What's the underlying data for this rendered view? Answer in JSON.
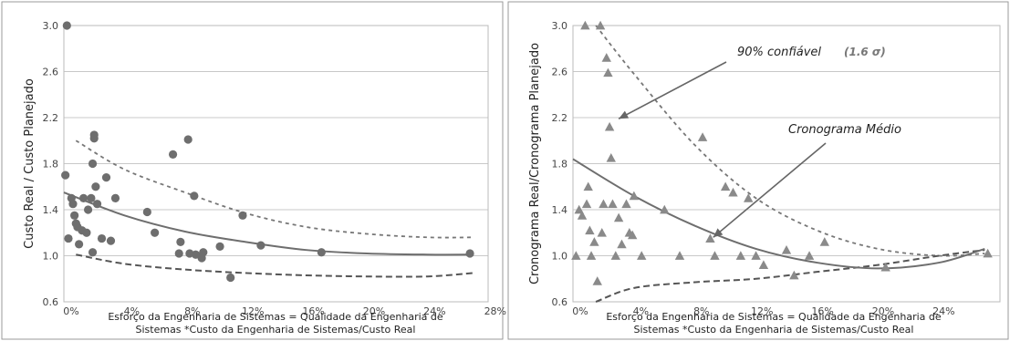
{
  "chart_data": [
    {
      "type": "scatter",
      "ylabel": "Custo Real / Custo Planejado",
      "xlabel_lines": [
        "Esforço da Engenharia de Sistemas = Qualidade da Engenharia de",
        "Sistemas *Custo da Engenharia de Sistemas/Custo Real"
      ],
      "xlim": [
        0,
        28
      ],
      "ylim": [
        0.6,
        3.0
      ],
      "x_ticks": [
        "0%",
        "4%",
        "8%",
        "12%",
        "16%",
        "20%",
        "24%",
        "28%"
      ],
      "y_ticks": [
        "0.6",
        "1.0",
        "1.4",
        "1.8",
        "2.2",
        "2.6",
        "3.0"
      ],
      "grid": true,
      "marker": "circle",
      "points": [
        {
          "x": 0.2,
          "y": 3.0
        },
        {
          "x": 0.1,
          "y": 1.7
        },
        {
          "x": 0.3,
          "y": 1.15
        },
        {
          "x": 0.5,
          "y": 1.5
        },
        {
          "x": 0.6,
          "y": 1.45
        },
        {
          "x": 0.7,
          "y": 1.35
        },
        {
          "x": 0.8,
          "y": 1.28
        },
        {
          "x": 0.9,
          "y": 1.25
        },
        {
          "x": 1.0,
          "y": 1.1
        },
        {
          "x": 1.2,
          "y": 1.22
        },
        {
          "x": 1.3,
          "y": 1.5
        },
        {
          "x": 1.5,
          "y": 1.2
        },
        {
          "x": 1.6,
          "y": 1.4
        },
        {
          "x": 1.8,
          "y": 1.5
        },
        {
          "x": 1.9,
          "y": 1.8
        },
        {
          "x": 2.0,
          "y": 2.05
        },
        {
          "x": 2.0,
          "y": 2.02
        },
        {
          "x": 2.1,
          "y": 1.6
        },
        {
          "x": 2.2,
          "y": 1.45
        },
        {
          "x": 1.9,
          "y": 1.03
        },
        {
          "x": 2.5,
          "y": 1.15
        },
        {
          "x": 2.8,
          "y": 1.68
        },
        {
          "x": 3.1,
          "y": 1.13
        },
        {
          "x": 3.4,
          "y": 1.5
        },
        {
          "x": 5.5,
          "y": 1.38
        },
        {
          "x": 6.0,
          "y": 1.2
        },
        {
          "x": 7.2,
          "y": 1.88
        },
        {
          "x": 7.6,
          "y": 1.02
        },
        {
          "x": 7.7,
          "y": 1.12
        },
        {
          "x": 8.2,
          "y": 2.01
        },
        {
          "x": 8.3,
          "y": 1.02
        },
        {
          "x": 8.6,
          "y": 1.52
        },
        {
          "x": 8.7,
          "y": 1.01
        },
        {
          "x": 9.1,
          "y": 0.98
        },
        {
          "x": 9.2,
          "y": 1.03
        },
        {
          "x": 10.3,
          "y": 1.08
        },
        {
          "x": 11.0,
          "y": 0.81
        },
        {
          "x": 11.8,
          "y": 1.35
        },
        {
          "x": 13.0,
          "y": 1.09
        },
        {
          "x": 17.0,
          "y": 1.03
        },
        {
          "x": 26.8,
          "y": 1.02
        }
      ],
      "curves": {
        "mean": [
          {
            "x": 0,
            "y": 1.55
          },
          {
            "x": 4,
            "y": 1.35
          },
          {
            "x": 8,
            "y": 1.21
          },
          {
            "x": 12,
            "y": 1.12
          },
          {
            "x": 16,
            "y": 1.05
          },
          {
            "x": 20,
            "y": 1.02
          },
          {
            "x": 24,
            "y": 1.01
          },
          {
            "x": 27,
            "y": 1.01
          }
        ],
        "upper": [
          {
            "x": 0.8,
            "y": 2.0
          },
          {
            "x": 4,
            "y": 1.75
          },
          {
            "x": 8,
            "y": 1.55
          },
          {
            "x": 12,
            "y": 1.37
          },
          {
            "x": 16,
            "y": 1.25
          },
          {
            "x": 20,
            "y": 1.19
          },
          {
            "x": 24,
            "y": 1.16
          },
          {
            "x": 27,
            "y": 1.16
          }
        ],
        "lower": [
          {
            "x": 0.8,
            "y": 1.01
          },
          {
            "x": 4,
            "y": 0.93
          },
          {
            "x": 8,
            "y": 0.88
          },
          {
            "x": 12,
            "y": 0.85
          },
          {
            "x": 16,
            "y": 0.83
          },
          {
            "x": 20,
            "y": 0.82
          },
          {
            "x": 24,
            "y": 0.82
          },
          {
            "x": 27,
            "y": 0.85
          }
        ]
      }
    },
    {
      "type": "scatter",
      "ylabel": "Cronograma Real/Cronograma Planejado",
      "xlabel_lines": [
        "Esforço da Engenharia de Sistemas = Qualidade da Engenharia de",
        "Sistemas *Custo da Engenharia de Sistemas/Custo Real"
      ],
      "xlim": [
        0,
        28
      ],
      "ylim": [
        0.6,
        3.0
      ],
      "x_ticks": [
        "0%",
        "4%",
        "8%",
        "12%",
        "16%",
        "20%",
        "24%"
      ],
      "y_ticks": [
        "0.6",
        "1.0",
        "1.4",
        "1.8",
        "2.2",
        "2.6",
        "3.0"
      ],
      "grid": true,
      "marker": "triangle",
      "annotations": [
        {
          "text": "90% confiável",
          "sub": "(1.6 σ)",
          "target_x": 3.0,
          "target_y": 2.19
        },
        {
          "text": "Cronograma Médio",
          "target_x": 9.2,
          "target_y": 1.16
        }
      ],
      "points": [
        {
          "x": 0.2,
          "y": 1.0
        },
        {
          "x": 0.4,
          "y": 1.4
        },
        {
          "x": 0.6,
          "y": 1.35
        },
        {
          "x": 0.8,
          "y": 3.0
        },
        {
          "x": 0.9,
          "y": 1.45
        },
        {
          "x": 1.0,
          "y": 1.6
        },
        {
          "x": 1.1,
          "y": 1.22
        },
        {
          "x": 1.2,
          "y": 1.0
        },
        {
          "x": 1.4,
          "y": 1.12
        },
        {
          "x": 1.6,
          "y": 0.78
        },
        {
          "x": 1.8,
          "y": 3.0
        },
        {
          "x": 1.9,
          "y": 1.2
        },
        {
          "x": 2.0,
          "y": 1.45
        },
        {
          "x": 2.2,
          "y": 2.72
        },
        {
          "x": 2.3,
          "y": 2.59
        },
        {
          "x": 2.4,
          "y": 2.12
        },
        {
          "x": 2.5,
          "y": 1.85
        },
        {
          "x": 2.6,
          "y": 1.45
        },
        {
          "x": 2.8,
          "y": 1.0
        },
        {
          "x": 3.0,
          "y": 1.33
        },
        {
          "x": 3.2,
          "y": 1.1
        },
        {
          "x": 3.5,
          "y": 1.45
        },
        {
          "x": 3.7,
          "y": 1.2
        },
        {
          "x": 3.9,
          "y": 1.18
        },
        {
          "x": 4.0,
          "y": 1.52
        },
        {
          "x": 4.5,
          "y": 1.0
        },
        {
          "x": 6.0,
          "y": 1.4
        },
        {
          "x": 7.0,
          "y": 1.0
        },
        {
          "x": 8.5,
          "y": 2.03
        },
        {
          "x": 9.0,
          "y": 1.15
        },
        {
          "x": 9.3,
          "y": 1.0
        },
        {
          "x": 10.0,
          "y": 1.6
        },
        {
          "x": 10.5,
          "y": 1.55
        },
        {
          "x": 11.0,
          "y": 1.0
        },
        {
          "x": 11.5,
          "y": 1.5
        },
        {
          "x": 12.0,
          "y": 1.0
        },
        {
          "x": 12.5,
          "y": 0.92
        },
        {
          "x": 14.0,
          "y": 1.05
        },
        {
          "x": 14.5,
          "y": 0.83
        },
        {
          "x": 15.5,
          "y": 1.0
        },
        {
          "x": 16.5,
          "y": 1.12
        },
        {
          "x": 20.5,
          "y": 0.9
        },
        {
          "x": 27.2,
          "y": 1.02
        }
      ],
      "curves": {
        "mean": [
          {
            "x": 0,
            "y": 1.84
          },
          {
            "x": 4,
            "y": 1.52
          },
          {
            "x": 8,
            "y": 1.26
          },
          {
            "x": 12,
            "y": 1.06
          },
          {
            "x": 16,
            "y": 0.94
          },
          {
            "x": 20,
            "y": 0.89
          },
          {
            "x": 24,
            "y": 0.94
          },
          {
            "x": 27,
            "y": 1.06
          }
        ],
        "upper": [
          {
            "x": 1.5,
            "y": 3.0
          },
          {
            "x": 4,
            "y": 2.58
          },
          {
            "x": 8,
            "y": 1.96
          },
          {
            "x": 12,
            "y": 1.5
          },
          {
            "x": 16,
            "y": 1.22
          },
          {
            "x": 20,
            "y": 1.06
          },
          {
            "x": 24,
            "y": 1.0
          },
          {
            "x": 27,
            "y": 1.02
          }
        ],
        "lower": [
          {
            "x": 1.5,
            "y": 0.6
          },
          {
            "x": 4,
            "y": 0.72
          },
          {
            "x": 8,
            "y": 0.77
          },
          {
            "x": 12,
            "y": 0.8
          },
          {
            "x": 16,
            "y": 0.86
          },
          {
            "x": 20,
            "y": 0.92
          },
          {
            "x": 24,
            "y": 1.0
          },
          {
            "x": 27,
            "y": 1.05
          }
        ]
      }
    }
  ]
}
